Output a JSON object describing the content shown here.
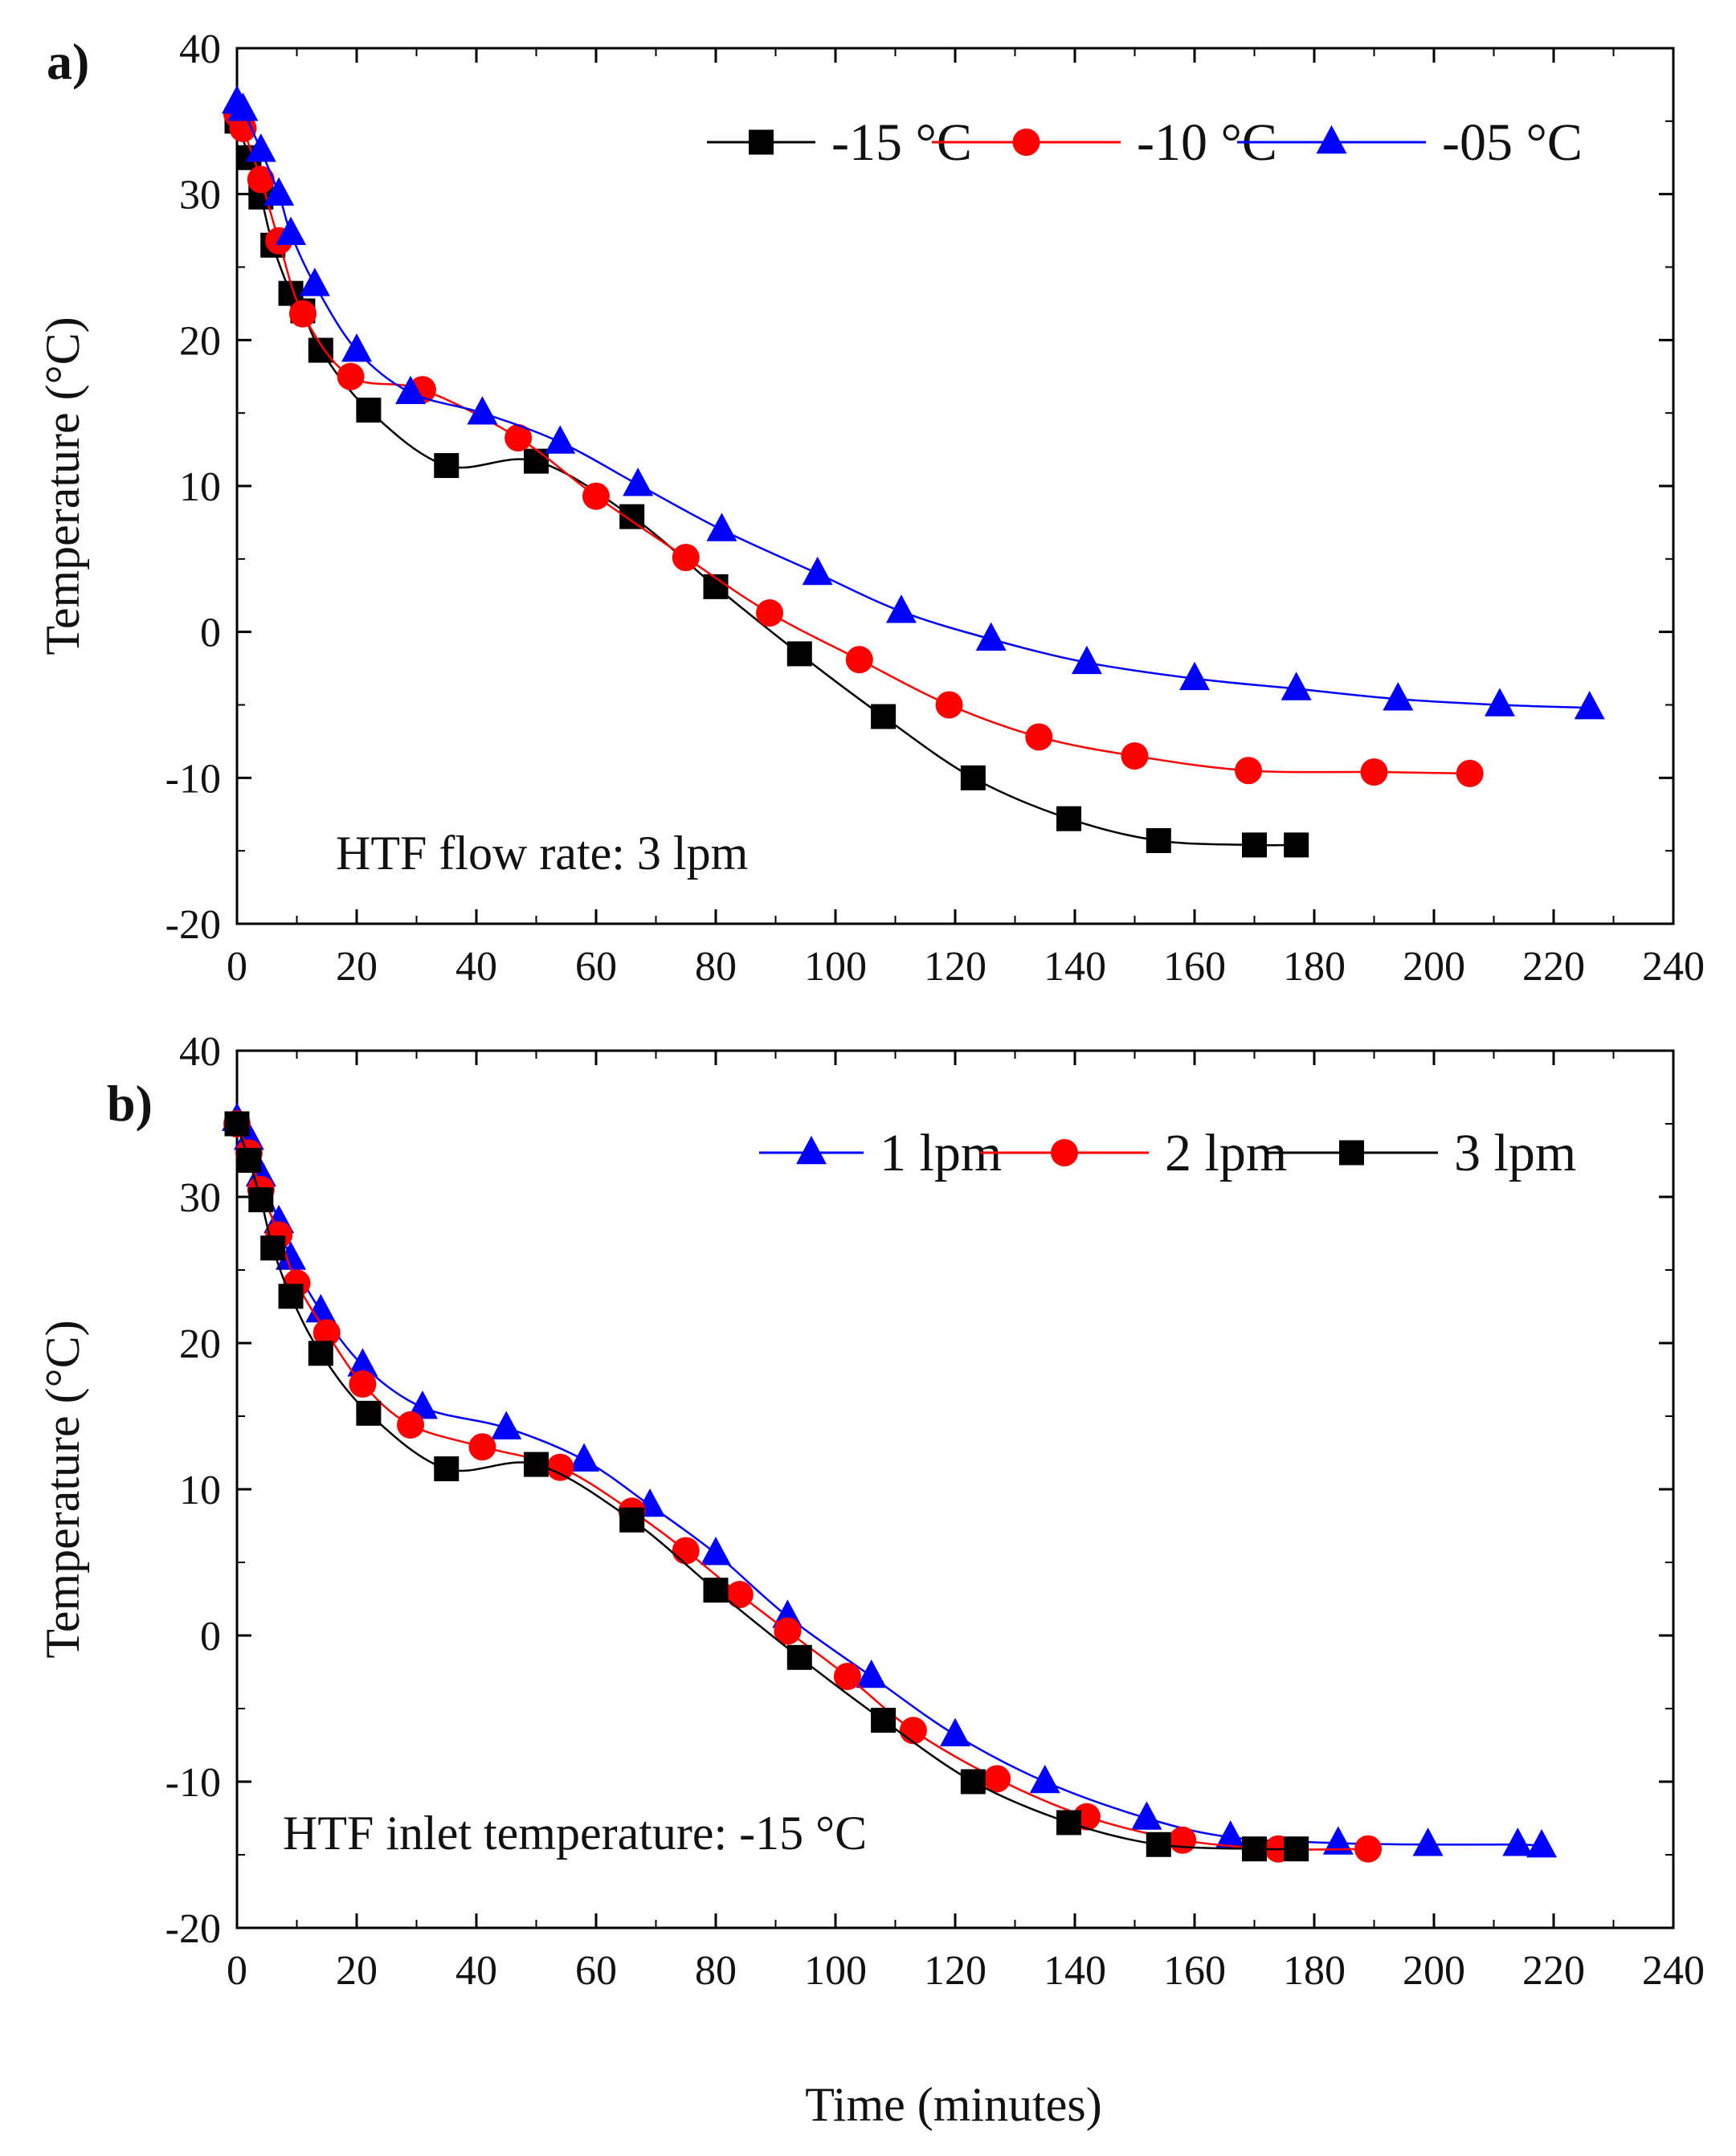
{
  "figure": {
    "xlabel": "Time (minutes)"
  },
  "chart_data": [
    {
      "type": "line",
      "panel_label": "a)",
      "annotation": "HTF flow rate: 3 lpm",
      "xlabel": "",
      "ylabel": "Temperature (°C)",
      "xlim": [
        0,
        240
      ],
      "ylim": [
        -20,
        40
      ],
      "xticks": [
        "0",
        "20",
        "40",
        "60",
        "80",
        "100",
        "120",
        "140",
        "160",
        "180",
        "200",
        "220",
        "240"
      ],
      "yticks": [
        "-20",
        "-10",
        "0",
        "10",
        "20",
        "30",
        "40"
      ],
      "grid": false,
      "legend_position": "top-right",
      "series": [
        {
          "name": "-15 °C",
          "color": "#000000",
          "marker": "square",
          "x": [
            0,
            2,
            4,
            6,
            9,
            11,
            14,
            22,
            35,
            50,
            66,
            80,
            94,
            108,
            123,
            139,
            154,
            170,
            177
          ],
          "y": [
            35,
            32.5,
            29.8,
            26.5,
            23.2,
            22,
            19.3,
            15.2,
            11.4,
            11.7,
            7.9,
            3.1,
            -1.5,
            -5.8,
            -10,
            -12.8,
            -14.3,
            -14.6,
            -14.6
          ]
        },
        {
          "name": "-10 °C",
          "color": "#ff0000",
          "marker": "circle",
          "x": [
            0,
            1,
            4,
            7,
            11,
            19,
            31,
            47,
            60,
            75,
            89,
            104,
            119,
            134,
            150,
            169,
            190,
            206
          ],
          "y": [
            35.5,
            34.5,
            31,
            26.8,
            21.8,
            17.5,
            16.6,
            13.3,
            9.3,
            5.1,
            1.3,
            -1.9,
            -5,
            -7.2,
            -8.5,
            -9.5,
            -9.6,
            -9.7
          ]
        },
        {
          "name": "-05 °C",
          "color": "#0000ff",
          "marker": "triangle",
          "x": [
            0,
            1,
            4,
            7,
            9,
            13,
            20,
            29,
            41,
            54,
            67,
            81,
            97,
            111,
            126,
            142,
            160,
            177,
            194,
            211,
            226
          ],
          "y": [
            36.3,
            35.8,
            33,
            30,
            27.3,
            23.8,
            19.3,
            16.4,
            15,
            13,
            10.1,
            7,
            4,
            1.4,
            -0.5,
            -2.1,
            -3.2,
            -3.9,
            -4.6,
            -5,
            -5.2
          ]
        }
      ]
    },
    {
      "type": "line",
      "panel_label": "b)",
      "annotation": "HTF inlet temperature: -15 °C",
      "xlabel": "Time (minutes)",
      "ylabel": "Temperature (°C)",
      "xlim": [
        0,
        240
      ],
      "ylim": [
        -20,
        40
      ],
      "xticks": [
        "0",
        "20",
        "40",
        "60",
        "80",
        "100",
        "120",
        "140",
        "160",
        "180",
        "200",
        "220",
        "240"
      ],
      "yticks": [
        "-20",
        "-10",
        "0",
        "10",
        "20",
        "30",
        "40"
      ],
      "grid": false,
      "legend_position": "top-right",
      "series": [
        {
          "name": "1 lpm",
          "color": "#0000ff",
          "marker": "triangle",
          "x": [
            0,
            2,
            4,
            7,
            9,
            14,
            21,
            31,
            45,
            58,
            69,
            80,
            92,
            106,
            120,
            135,
            152,
            166,
            184,
            199,
            214,
            218
          ],
          "y": [
            35.3,
            34,
            31.5,
            28.3,
            25.8,
            22.2,
            18.5,
            15.6,
            14.2,
            12,
            8.9,
            5.6,
            1.3,
            -2.8,
            -6.8,
            -10,
            -12.5,
            -13.8,
            -14.2,
            -14.3,
            -14.3,
            -14.4
          ]
        },
        {
          "name": "2 lpm",
          "color": "#ff0000",
          "marker": "circle",
          "x": [
            0,
            2,
            4,
            7,
            10,
            15,
            21,
            29,
            41,
            54,
            66,
            75,
            84,
            92,
            102,
            113,
            127,
            142,
            158,
            174,
            189
          ],
          "y": [
            35,
            33,
            30.5,
            27.4,
            24.1,
            20.7,
            17.2,
            14.4,
            12.9,
            11.5,
            8.5,
            5.8,
            2.8,
            0.3,
            -2.8,
            -6.5,
            -9.8,
            -12.4,
            -14,
            -14.6,
            -14.6
          ]
        },
        {
          "name": "3 lpm",
          "color": "#000000",
          "marker": "square",
          "x": [
            0,
            2,
            4,
            6,
            9,
            14,
            22,
            35,
            50,
            66,
            80,
            94,
            108,
            123,
            139,
            154,
            170,
            177
          ],
          "y": [
            35,
            32.5,
            29.8,
            26.5,
            23.2,
            19.3,
            15.2,
            11.4,
            11.7,
            7.9,
            3.1,
            -1.5,
            -5.8,
            -10,
            -12.8,
            -14.3,
            -14.6,
            -14.6
          ]
        }
      ]
    }
  ]
}
